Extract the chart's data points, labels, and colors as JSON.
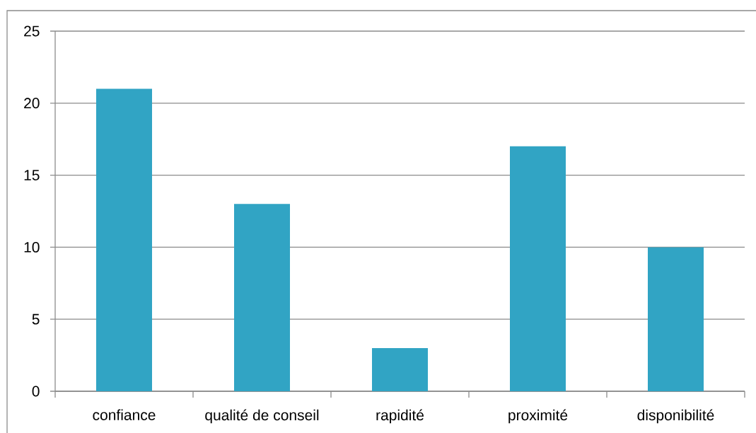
{
  "chart_data": {
    "type": "bar",
    "categories": [
      "confiance",
      "qualité de conseil",
      "rapidité",
      "proximité",
      "disponibilité"
    ],
    "values": [
      21,
      13,
      3,
      17,
      10
    ],
    "color": "#31a4c4",
    "ylim": [
      0,
      25
    ],
    "yticks": [
      0,
      5,
      10,
      15,
      20,
      25
    ],
    "grid": "y"
  }
}
